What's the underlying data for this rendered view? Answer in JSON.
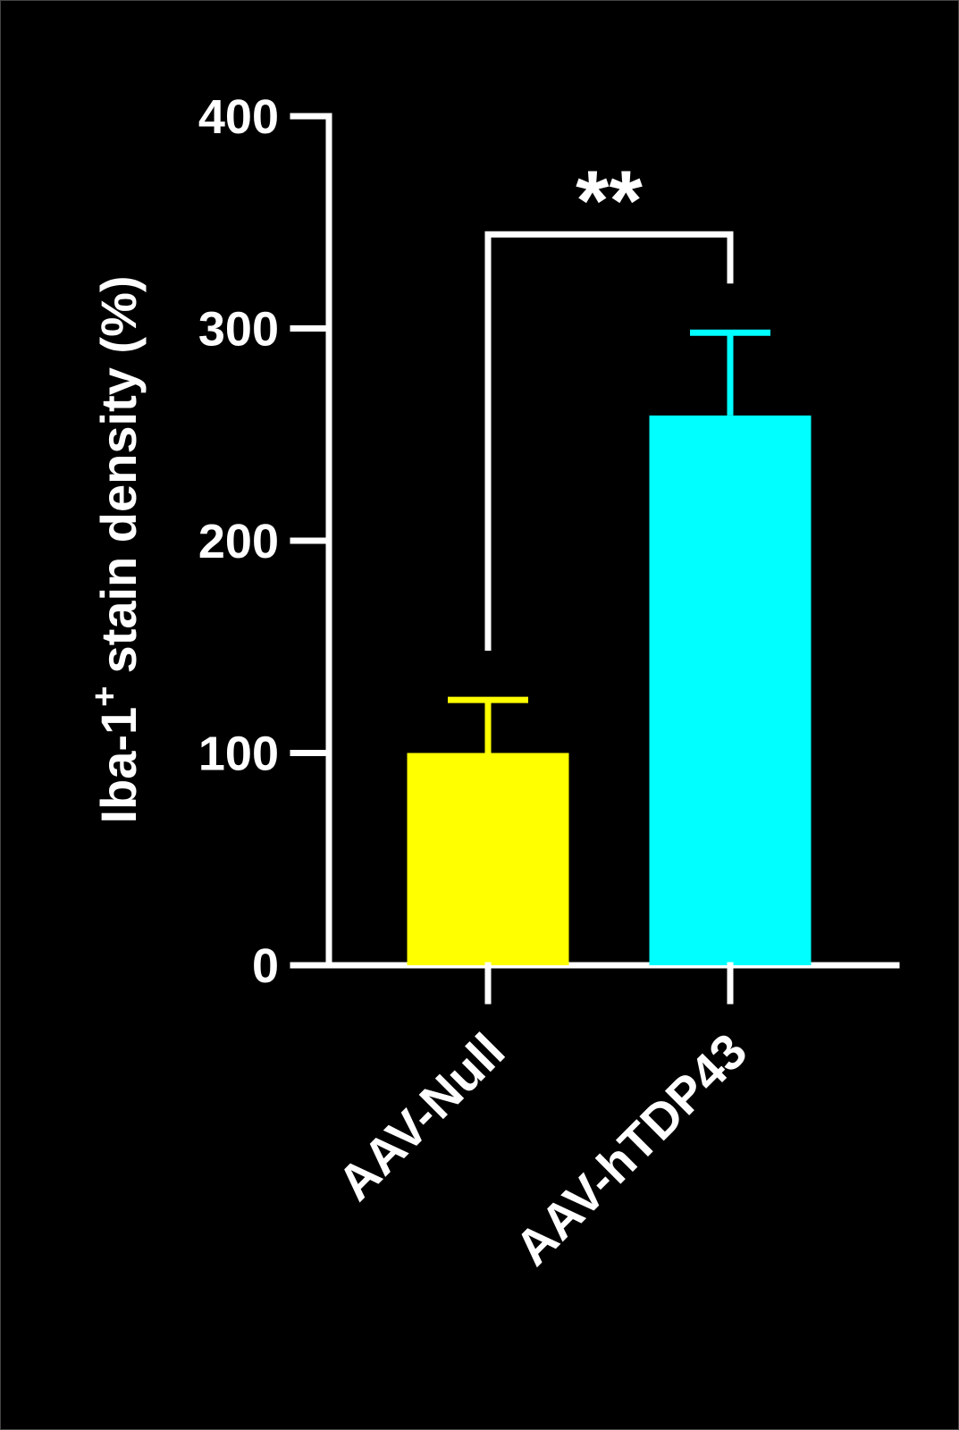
{
  "chart_data": {
    "type": "bar",
    "ylabel": {
      "main": "Iba-1",
      "sup": "+",
      "rest": "stain density (%)"
    },
    "categories": [
      "AAV-Null",
      "AAV-hTDP43"
    ],
    "values": [
      100,
      259
    ],
    "errors": [
      25,
      39
    ],
    "colors": [
      "#ffff00",
      "#00ffff"
    ],
    "ylim": [
      0,
      400
    ],
    "yticks": [
      0,
      100,
      200,
      300,
      400
    ],
    "significance": {
      "label": "**",
      "between": [
        0,
        1
      ]
    }
  }
}
